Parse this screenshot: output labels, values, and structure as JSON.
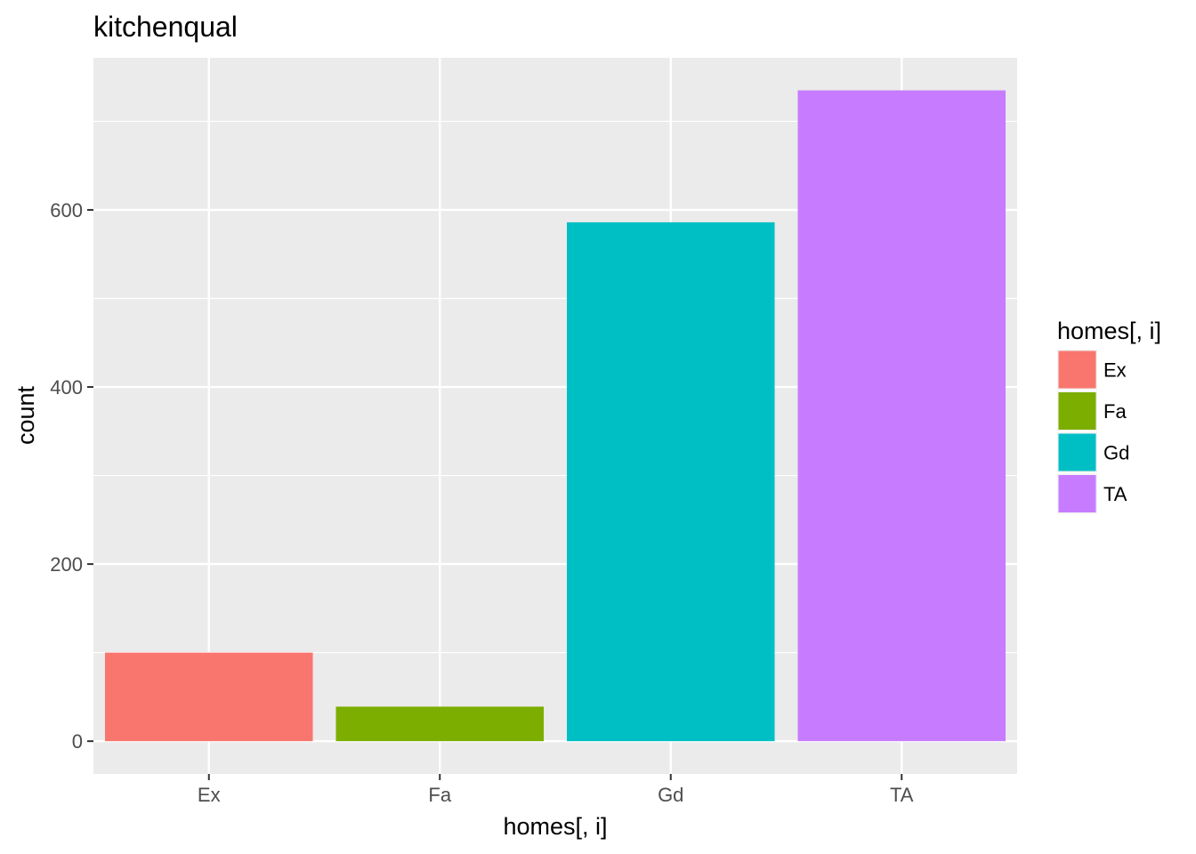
{
  "chart_data": {
    "type": "bar",
    "title": "kitchenqual",
    "xlabel": "homes[, i]",
    "ylabel": "count",
    "categories": [
      "Ex",
      "Fa",
      "Gd",
      "TA"
    ],
    "values": [
      100,
      39,
      586,
      735
    ],
    "colors": [
      "#F8766D",
      "#7CAE00",
      "#00BFC4",
      "#C77CFF"
    ],
    "ylim": [
      -37,
      771.75
    ],
    "yticks": [
      0,
      200,
      400,
      600
    ],
    "ytick_labels": [
      "0",
      "200",
      "400",
      "600"
    ],
    "grid": true,
    "panel_background": "#EBEBEB",
    "legend": {
      "title": "homes[, i]",
      "position": "right",
      "entries": [
        "Ex",
        "Fa",
        "Gd",
        "TA"
      ]
    }
  }
}
